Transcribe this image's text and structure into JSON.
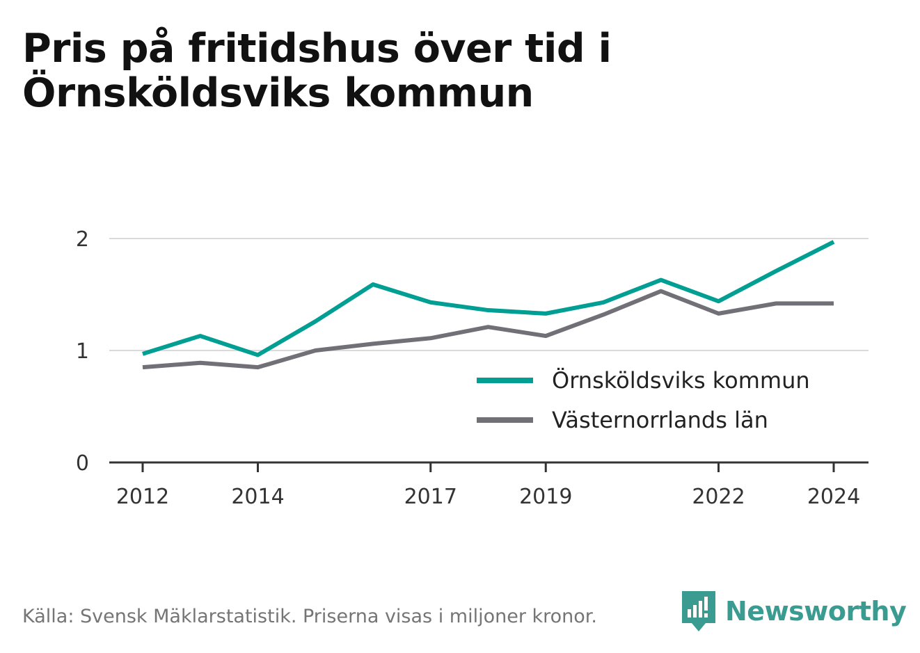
{
  "title": "Pris på fritidshus över tid i Örnsköldsviks kommun",
  "footer": {
    "source": "Källa: Svensk Mäklarstatistik. Priserna visas i miljoner kronor.",
    "brand": "Newsworthy"
  },
  "colors": {
    "series_1": "#009e93",
    "series_2": "#717076",
    "grid": "#d9d9d9",
    "axis": "#333333",
    "brand": "#3a9b90"
  },
  "chart_data": {
    "type": "line",
    "title": "Pris på fritidshus över tid i Örnsköldsviks kommun",
    "xlabel": "",
    "ylabel": "",
    "x": [
      2012,
      2013,
      2014,
      2015,
      2016,
      2017,
      2018,
      2019,
      2020,
      2021,
      2022,
      2023,
      2024
    ],
    "x_ticks": [
      "2012",
      "2014",
      "2017",
      "2019",
      "2022",
      "2024"
    ],
    "y_ticks": [
      "0",
      "1",
      "2"
    ],
    "ylim": [
      0,
      2
    ],
    "grid": true,
    "legend_position": "right-middle",
    "series": [
      {
        "name": "Örnsköldsviks kommun",
        "values": [
          0.97,
          1.13,
          0.96,
          1.26,
          1.59,
          1.43,
          1.36,
          1.33,
          1.43,
          1.63,
          1.44,
          1.71,
          1.97
        ]
      },
      {
        "name": "Västernorrlands län",
        "values": [
          0.85,
          0.89,
          0.85,
          1.0,
          1.06,
          1.11,
          1.21,
          1.13,
          1.32,
          1.53,
          1.33,
          1.42,
          1.42
        ]
      }
    ]
  }
}
